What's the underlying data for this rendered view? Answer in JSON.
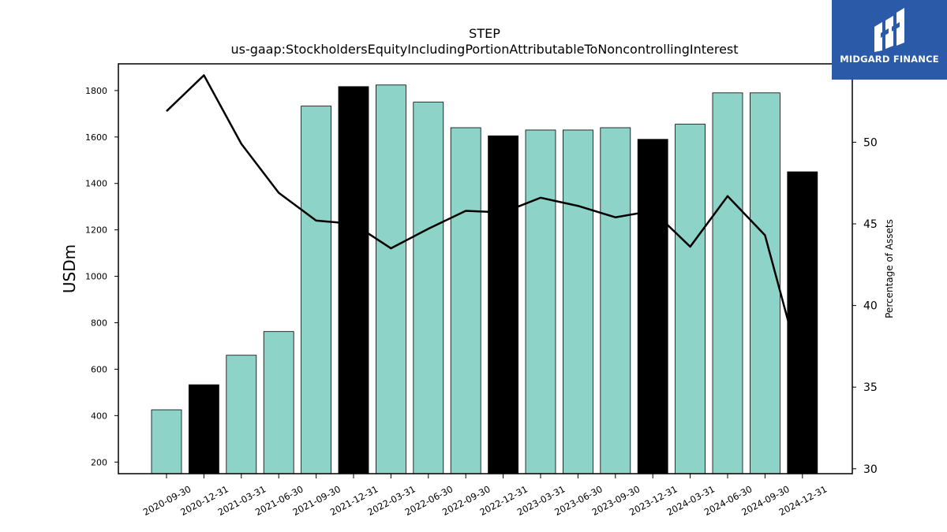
{
  "chart_data": {
    "type": "bar",
    "title": "STEP",
    "subtitle": "us-gaap:StockholdersEquityIncludingPortionAttributableToNoncontrollingInterest",
    "ylabel": "USDm",
    "y2label": "Percentage of Assets",
    "ylim": [
      150,
      1915
    ],
    "y2lim": [
      29.7,
      54.8
    ],
    "yticks": [
      200,
      400,
      600,
      800,
      1000,
      1200,
      1400,
      1600,
      1800
    ],
    "y2ticks": [
      30,
      35,
      40,
      45,
      50
    ],
    "categories": [
      "2020-09-30",
      "2020-12-31",
      "2021-03-31",
      "2021-06-30",
      "2021-09-30",
      "2021-12-31",
      "2022-03-31",
      "2022-06-30",
      "2022-09-30",
      "2022-12-31",
      "2023-03-31",
      "2023-06-30",
      "2023-09-30",
      "2023-12-31",
      "2024-03-31",
      "2024-06-30",
      "2024-09-30",
      "2024-12-31"
    ],
    "series": [
      {
        "type": "bar",
        "values": [
          425,
          533,
          660,
          762,
          1733,
          1817,
          1824,
          1750,
          1640,
          1605,
          1630,
          1630,
          1640,
          1590,
          1655,
          1790,
          1790,
          1450
        ],
        "highlight": [
          false,
          true,
          false,
          false,
          false,
          true,
          false,
          false,
          false,
          true,
          false,
          false,
          false,
          true,
          false,
          false,
          false,
          true
        ]
      },
      {
        "type": "line",
        "axis": "right",
        "values": [
          51.9,
          54.1,
          49.9,
          46.9,
          45.2,
          45.0,
          43.5,
          44.7,
          45.8,
          45.7,
          46.6,
          46.1,
          45.4,
          45.8,
          43.6,
          46.7,
          44.3,
          35.8
        ]
      }
    ],
    "colors": {
      "bar": "#8dd3c7",
      "highlight": "#000000",
      "line": "#000000"
    },
    "grid": false
  },
  "logo": {
    "text": "MIDGARD FINANCE",
    "background": "#2b5aa8"
  }
}
